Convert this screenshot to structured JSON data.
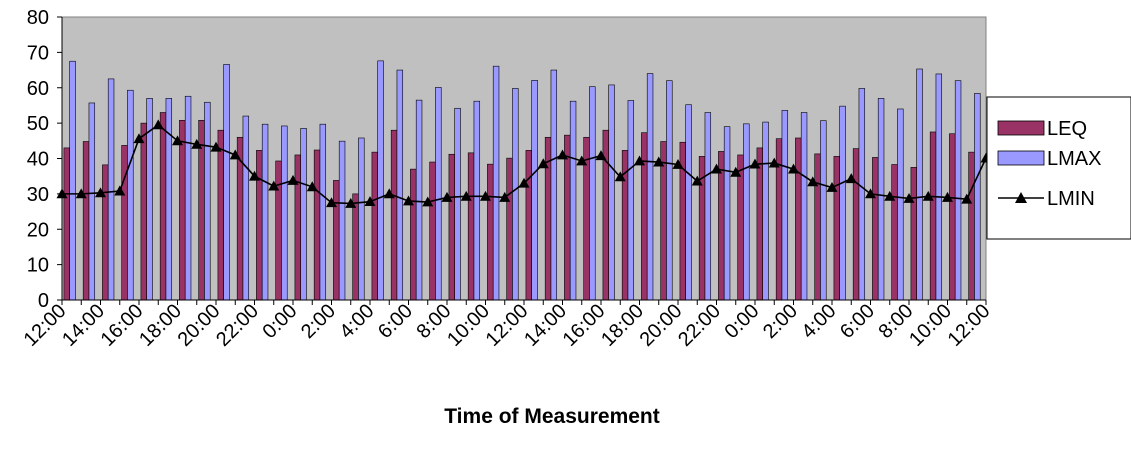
{
  "chart_data": {
    "type": "bar",
    "title": "",
    "xlabel": "Time of Measurement",
    "ylabel": "",
    "ylim": [
      0,
      80
    ],
    "yticks": [
      0,
      10,
      20,
      30,
      40,
      50,
      60,
      70,
      80
    ],
    "grid": false,
    "legend_position": "right",
    "categories": [
      "12:00",
      "13:00",
      "14:00",
      "15:00",
      "16:00",
      "17:00",
      "18:00",
      "19:00",
      "20:00",
      "21:00",
      "22:00",
      "23:00",
      "0:00",
      "1:00",
      "2:00",
      "3:00",
      "4:00",
      "5:00",
      "6:00",
      "7:00",
      "8:00",
      "9:00",
      "10:00",
      "11:00",
      "12:00",
      "13:00",
      "14:00",
      "15:00",
      "16:00",
      "17:00",
      "18:00",
      "19:00",
      "20:00",
      "21:00",
      "22:00",
      "23:00",
      "0:00",
      "1:00",
      "2:00",
      "3:00",
      "4:00",
      "5:00",
      "6:00",
      "7:00",
      "8:00",
      "9:00",
      "10:00",
      "11:00",
      "12:00"
    ],
    "tick_labels": [
      "12:00",
      "14:00",
      "16:00",
      "18:00",
      "20:00",
      "22:00",
      "0:00",
      "2:00",
      "4:00",
      "6:00",
      "8:00",
      "10:00",
      "12:00",
      "14:00",
      "16:00",
      "18:00",
      "20:00",
      "22:00",
      "0:00",
      "2:00",
      "4:00",
      "6:00",
      "8:00",
      "10:00",
      "12:00"
    ],
    "series": [
      {
        "name": "LEQ",
        "type": "bar",
        "color": "#993366",
        "values": [
          43,
          44.8,
          38.2,
          43.7,
          50,
          53,
          50.8,
          50.8,
          48,
          46,
          42.3,
          39.3,
          41,
          42.4,
          33.8,
          30,
          41.8,
          48,
          37,
          39,
          41.2,
          41.6,
          38.4,
          40.1,
          42.3,
          46,
          46.6,
          46,
          48,
          42.3,
          47.3,
          44.8,
          44.6,
          40.6,
          42,
          41,
          43,
          45.6,
          45.8,
          41.3,
          40.6,
          42.8,
          40.3,
          38.3,
          37.5,
          47.5,
          47,
          41.8,
          0
        ]
      },
      {
        "name": "LMAX",
        "type": "bar",
        "color": "#9999FF",
        "values": [
          67.5,
          55.7,
          62.5,
          59.3,
          57,
          57,
          57.6,
          55.9,
          66.6,
          52,
          49.7,
          49.2,
          48.5,
          49.7,
          44.9,
          45.8,
          67.6,
          65,
          56.5,
          60.1,
          54.2,
          56.2,
          66.1,
          59.8,
          62.1,
          65,
          56.2,
          60.3,
          60.8,
          56.4,
          64,
          62,
          55.2,
          53,
          49,
          49.8,
          50.3,
          53.6,
          53,
          50.7,
          54.8,
          59.8,
          57,
          54,
          65.3,
          63.9,
          62,
          58.4,
          0
        ]
      },
      {
        "name": "LMIN",
        "type": "line",
        "color": "#000000",
        "values": [
          30,
          30,
          30.3,
          30.8,
          45.6,
          49.5,
          45,
          44,
          43.2,
          41,
          35,
          32.2,
          33.8,
          32,
          27.5,
          27.3,
          27.8,
          30,
          28,
          27.7,
          29,
          29.3,
          29.3,
          29,
          33,
          38.5,
          41,
          39.3,
          40.8,
          34.8,
          39.3,
          39,
          38.3,
          33.6,
          37,
          36.1,
          38.4,
          38.7,
          37,
          33.4,
          31.8,
          34.3,
          30,
          29.3,
          28.7,
          29.3,
          29,
          28.5,
          40.1
        ]
      }
    ]
  }
}
